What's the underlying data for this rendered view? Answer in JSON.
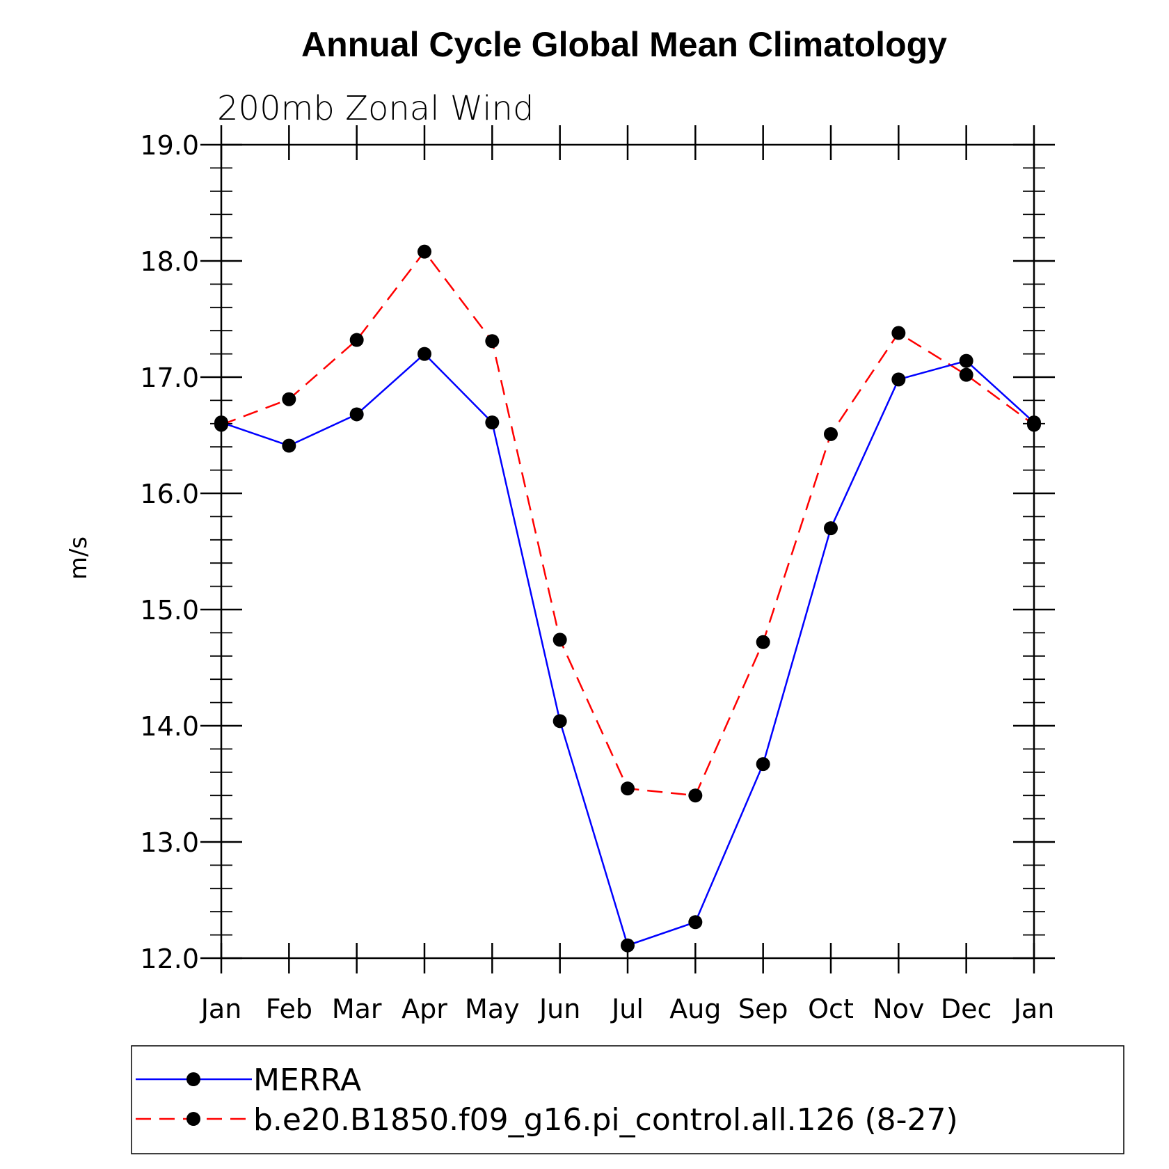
{
  "chart_data": {
    "type": "line",
    "title": "Annual Cycle Global Mean Climatology",
    "subtitle": "200mb Zonal Wind",
    "ylabel": "m/s",
    "xlabel": "",
    "categories": [
      "Jan",
      "Feb",
      "Mar",
      "Apr",
      "May",
      "Jun",
      "Jul",
      "Aug",
      "Sep",
      "Oct",
      "Nov",
      "Dec",
      "Jan"
    ],
    "ylim": [
      12.0,
      19.0
    ],
    "yticks": [
      "12.0",
      "13.0",
      "14.0",
      "15.0",
      "16.0",
      "17.0",
      "18.0",
      "19.0"
    ],
    "grid": false,
    "legend_position": "bottom",
    "series": [
      {
        "name": "MERRA",
        "color": "#0000ff",
        "line_style": "solid",
        "marker": "filled-circle",
        "values": [
          16.61,
          16.41,
          16.68,
          17.2,
          16.61,
          14.04,
          12.11,
          12.31,
          13.67,
          15.7,
          16.98,
          17.14,
          16.61
        ]
      },
      {
        "name": "b.e20.B1850.f09_g16.pi_control.all.126 (8-27)",
        "color": "#ff0000",
        "line_style": "dashed",
        "marker": "filled-circle",
        "values": [
          16.59,
          16.81,
          17.32,
          18.08,
          17.31,
          14.74,
          13.46,
          13.4,
          14.72,
          16.51,
          17.38,
          17.02,
          16.59
        ]
      }
    ]
  }
}
